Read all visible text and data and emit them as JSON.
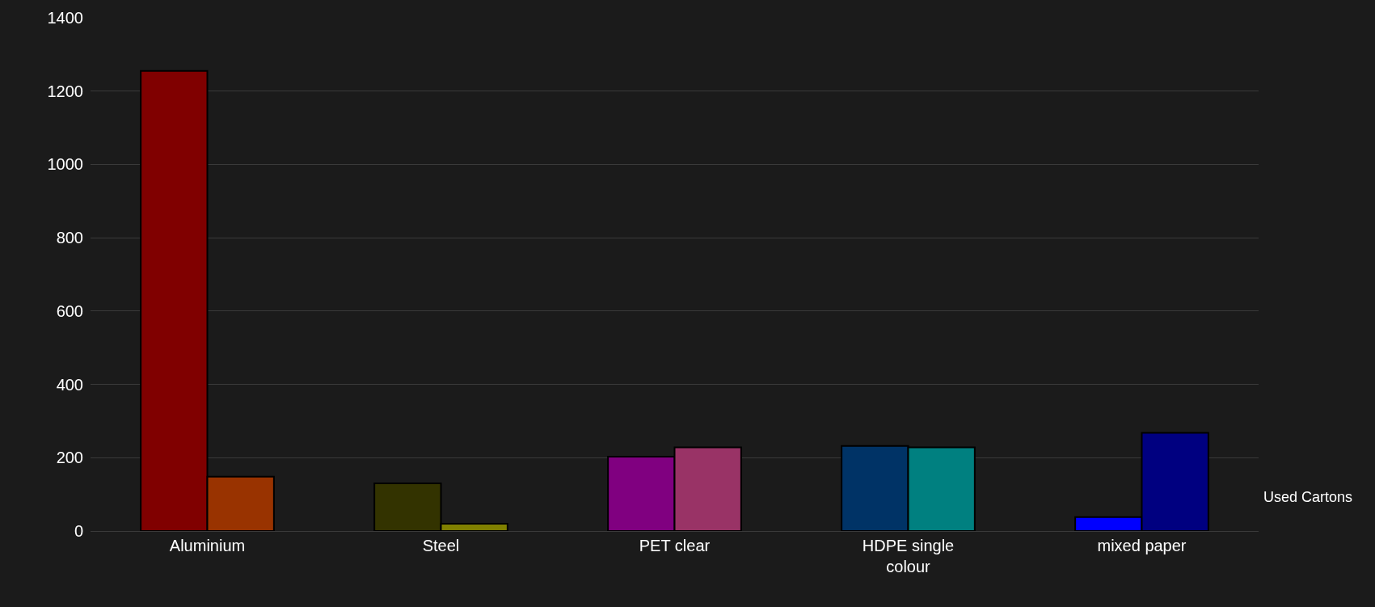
{
  "chart_data": {
    "type": "bar",
    "categories": [
      "Aluminium",
      "Steel",
      "PET clear",
      "HDPE single colour",
      "mixed paper"
    ],
    "series": [
      {
        "colors": [
          "#800000",
          "#333300",
          "#800080",
          "#003366",
          "#0000ff"
        ],
        "values": [
          1255,
          130,
          203,
          232,
          38
        ]
      },
      {
        "colors": [
          "#993300",
          "#808000",
          "#993366",
          "#008080",
          "#000080"
        ],
        "values": [
          148,
          20,
          228,
          228,
          268
        ]
      }
    ],
    "ylim": [
      0,
      1400
    ],
    "yticks": [
      0,
      200,
      400,
      600,
      800,
      1000,
      1200,
      1400
    ],
    "grid": "y",
    "annotations": [
      "Used Cartons"
    ]
  }
}
